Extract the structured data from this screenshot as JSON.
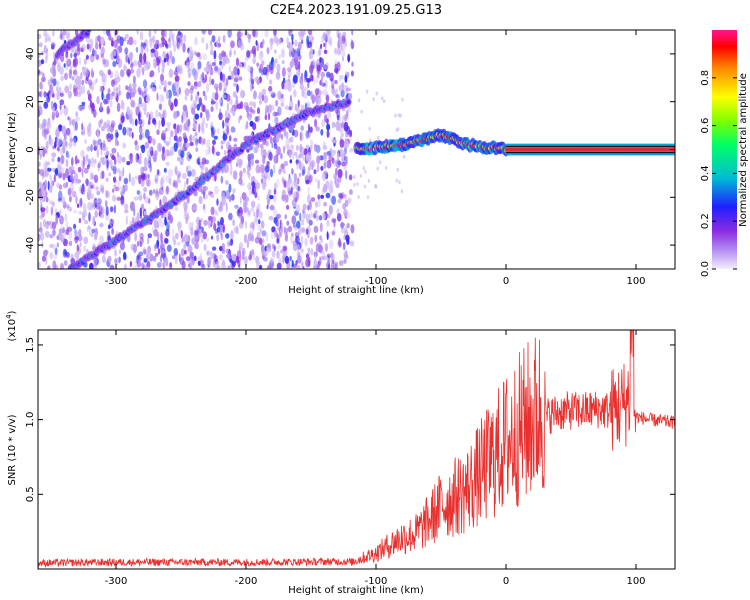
{
  "title": "C2E4.2023.191.09.25.G13",
  "chart_data": [
    {
      "type": "heatmap",
      "xlabel": "Height of straight line (km)",
      "ylabel": "Frequency (Hz)",
      "xlim": [
        -360,
        130
      ],
      "ylim": [
        -50,
        50
      ],
      "xticks": [
        -300,
        -200,
        -100,
        0,
        100
      ],
      "yticks": [
        -40,
        -20,
        0,
        20,
        40
      ],
      "colorbar": {
        "label": "Normalized spectral amplitude",
        "range": [
          0.0,
          1.0
        ],
        "ticks": [
          "0.0",
          "0.2",
          "0.4",
          "0.6",
          "0.8"
        ],
        "colors": [
          "#f3eefb",
          "#b18cf0",
          "#8a2be2",
          "#2020ff",
          "#00bcd4",
          "#00ff66",
          "#7fff00",
          "#ffff00",
          "#ff8800",
          "#ff0000",
          "#ff1493"
        ]
      },
      "traces": [
        {
          "x": [
            -345,
            -320
          ],
          "y": [
            40,
            50
          ],
          "amplitude": 0.3
        },
        {
          "x": [
            -335,
            -300,
            -250,
            -200,
            -150,
            -120
          ],
          "y": [
            -50,
            -38,
            -20,
            2,
            16,
            20
          ],
          "amplitude": 0.35
        },
        {
          "x": [
            -115,
            -80,
            -50,
            -30,
            0,
            130
          ],
          "y": [
            0,
            2,
            6,
            2,
            0,
            0
          ],
          "amplitude": 0.9
        }
      ]
    },
    {
      "type": "line",
      "xlabel": "Height of straight line (km)",
      "ylabel": "SNR (10 * v/v)",
      "yscale_label": "(x10^4)",
      "xlim": [
        -360,
        130
      ],
      "ylim": [
        0,
        16000
      ],
      "xticks": [
        -300,
        -200,
        -100,
        0,
        100
      ],
      "yticks": [
        "0.5",
        "1.0",
        "1.5"
      ],
      "series": [
        {
          "color": "#e8302e",
          "x": [
            -360,
            -300,
            -200,
            -120,
            -100,
            -90,
            -80,
            -70,
            -60,
            -50,
            -40,
            -30,
            -20,
            -10,
            0,
            10,
            20,
            30,
            40,
            50,
            60,
            70,
            80,
            90,
            95,
            100,
            110,
            130
          ],
          "y": [
            300,
            350,
            350,
            400,
            1000,
            1500,
            2000,
            2200,
            3000,
            4000,
            4500,
            5000,
            6000,
            7000,
            8000,
            8800,
            9500,
            10200,
            10500,
            10600,
            10600,
            10700,
            10600,
            11000,
            11500,
            10200,
            10000,
            9800
          ]
        }
      ]
    }
  ]
}
